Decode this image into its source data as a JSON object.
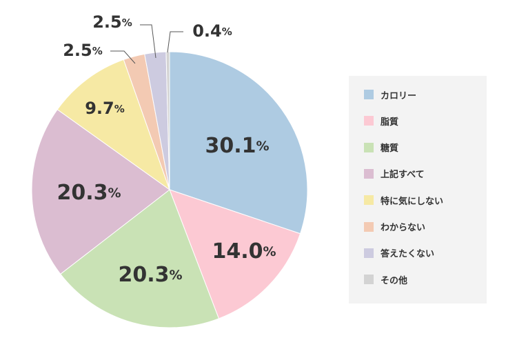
{
  "chart_data": {
    "type": "pie",
    "categories": [
      "カロリー",
      "脂質",
      "糖質",
      "上記すべて",
      "特に気にしない",
      "わからない",
      "答えたくない",
      "その他"
    ],
    "values": [
      30.1,
      14.0,
      20.3,
      20.3,
      9.7,
      2.5,
      2.5,
      0.4
    ],
    "value_labels": [
      "30.1",
      "14.0",
      "20.3",
      "20.3",
      "9.7",
      "2.5",
      "2.5",
      "0.4"
    ],
    "unit": "%",
    "colors": [
      "#aecbe2",
      "#fcc9d3",
      "#c9e2b5",
      "#dbbdd1",
      "#f6e9a4",
      "#f3cab3",
      "#cdcbe0",
      "#d3d3d3"
    ],
    "legend_placement": "right",
    "title": ""
  }
}
